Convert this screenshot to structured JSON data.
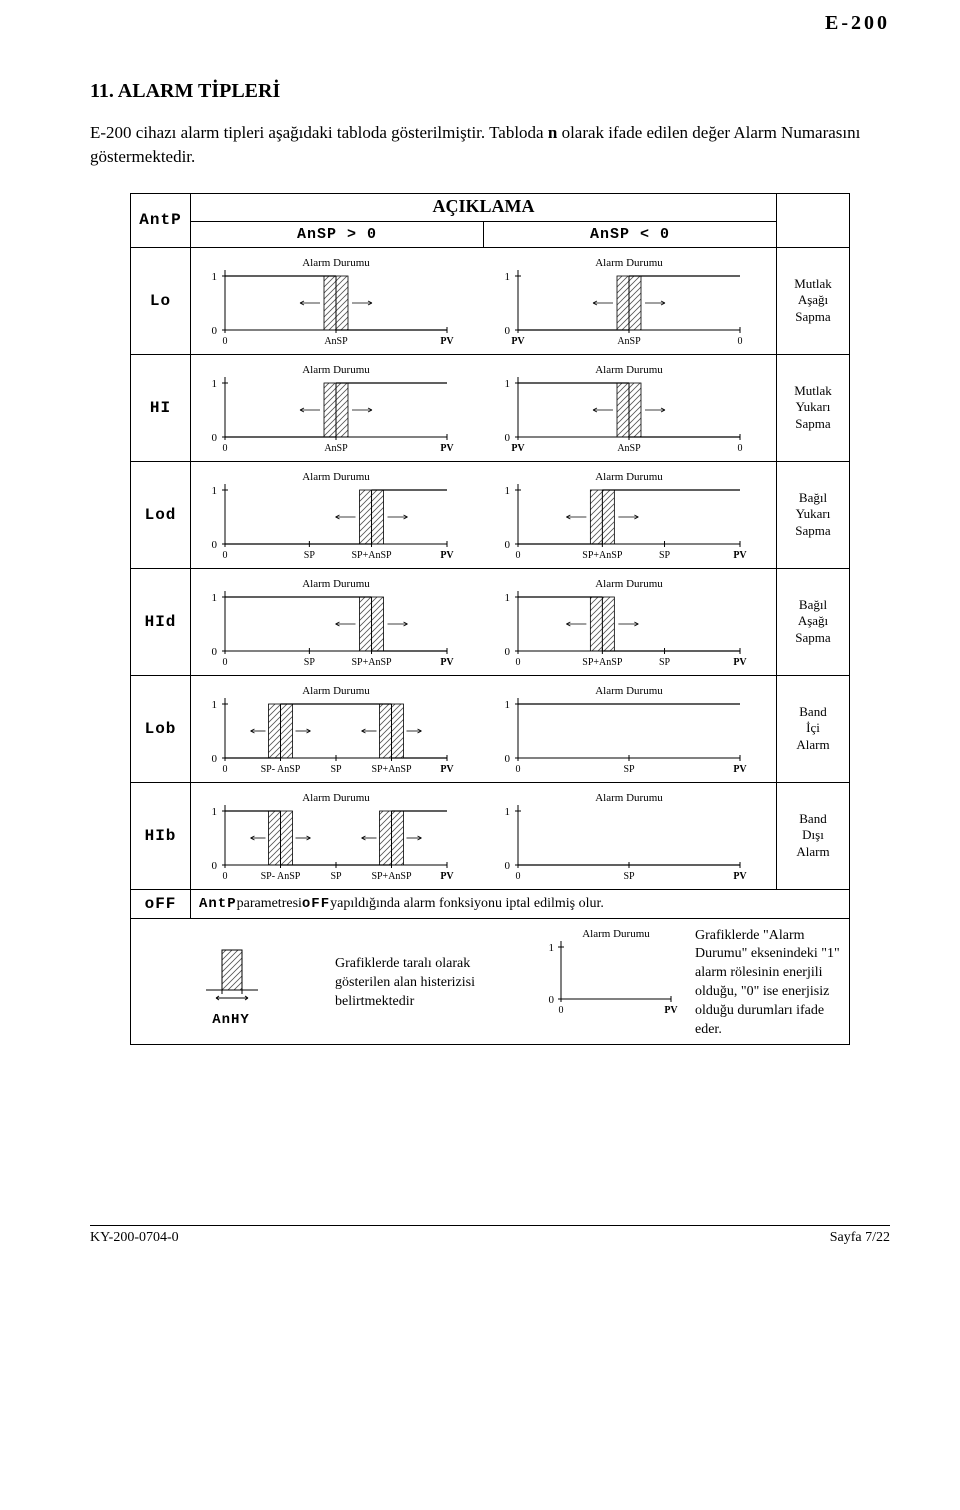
{
  "header_code": "E-200",
  "section_title": "11. ALARM TİPLERİ",
  "intro_before_bold": "E-200 cihazı alarm tipleri aşağıdaki tabloda gösterilmiştir. Tabloda ",
  "intro_bold": "n",
  "intro_after_bold": " olarak ifade edilen değer Alarm Numarasını göstermektedir.",
  "table": {
    "header_param": "AntP",
    "header_title": "AÇIKLAMA",
    "col_pos": "AnSP > 0",
    "col_neg": "AnSP < 0",
    "alarm_durumu": "Alarm Durumu",
    "rows": [
      {
        "code": "Lo",
        "desc": "Mutlak Aşağı Sapma",
        "left": {
          "ticks": [
            "0",
            "AnSP",
            "PV"
          ],
          "shape": "lo_pos"
        },
        "right": {
          "ticks": [
            "PV",
            "AnSP",
            "0"
          ],
          "shape": "lo_neg"
        }
      },
      {
        "code": "HI",
        "desc": "Mutlak Yukarı Sapma",
        "left": {
          "ticks": [
            "0",
            "AnSP",
            "PV"
          ],
          "shape": "hi_pos"
        },
        "right": {
          "ticks": [
            "PV",
            "AnSP",
            "0"
          ],
          "shape": "hi_neg"
        }
      },
      {
        "code": "Lod",
        "desc": "Bağıl Yukarı Sapma",
        "left": {
          "ticks": [
            "0",
            "SP",
            "SP+AnSP",
            "PV"
          ],
          "shape": "lod_pos"
        },
        "right": {
          "ticks": [
            "0",
            "SP+AnSP",
            "SP",
            "PV"
          ],
          "shape": "lod_neg"
        }
      },
      {
        "code": "HId",
        "desc": "Bağıl Aşağı Sapma",
        "left": {
          "ticks": [
            "0",
            "SP",
            "SP+AnSP",
            "PV"
          ],
          "shape": "hid_pos"
        },
        "right": {
          "ticks": [
            "0",
            "SP+AnSP",
            "SP",
            "PV"
          ],
          "shape": "hid_neg"
        }
      },
      {
        "code": "Lob",
        "desc": "Band İçi Alarm",
        "left": {
          "ticks": [
            "0",
            "SP- AnSP",
            "SP",
            "SP+AnSP",
            "PV"
          ],
          "shape": "lob_pos"
        },
        "right": {
          "ticks": [
            "0",
            "SP",
            "PV"
          ],
          "shape": "lob_neg"
        }
      },
      {
        "code": "HIb",
        "desc": "Band Dışı Alarm",
        "left": {
          "ticks": [
            "0",
            "SP- AnSP",
            "SP",
            "SP+AnSP",
            "PV"
          ],
          "shape": "hib_pos"
        },
        "right": {
          "ticks": [
            "0",
            "SP",
            "PV"
          ],
          "shape": "hib_neg"
        }
      }
    ],
    "off_code": "oFF",
    "off_text_prefix": "AntP",
    "off_text_mid": " parametresi ",
    "off_text_seg": "oFF",
    "off_text_suffix": " yapıldığında alarm fonksiyonu iptal edilmiş olur.",
    "legend_hy_label": "AnHY",
    "legend_left_text": "Grafiklerde taralı olarak gösterilen alan histerizisi belirtmektedir",
    "legend_right_text": "Grafiklerde \"Alarm Durumu\" eksenindeki \"1\" alarm rölesinin enerjili olduğu, \"0\" ise enerjisiz olduğu durumları ifade eder.",
    "legend_graph_ticks": [
      "0",
      "PV"
    ]
  },
  "footer_left": "KY-200-0704-0",
  "footer_right": "Sayfa 7/22",
  "colors": {
    "stroke": "#000000",
    "hatch": "#555555",
    "bg": "#ffffff"
  }
}
